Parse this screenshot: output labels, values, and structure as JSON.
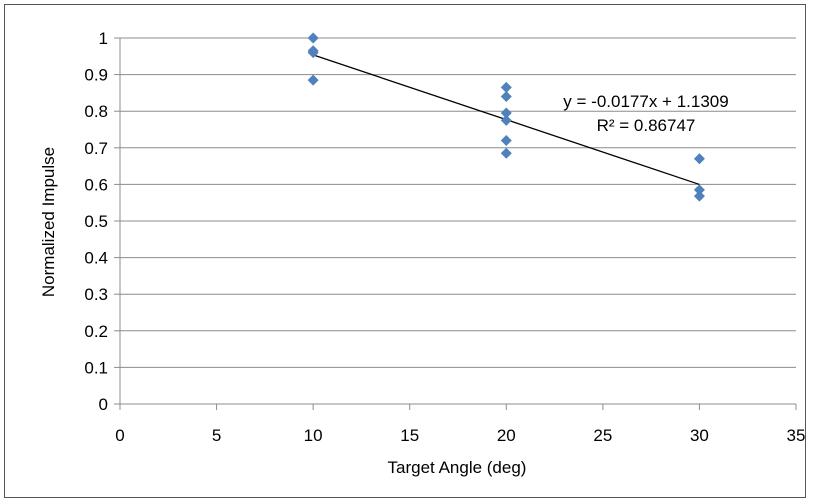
{
  "chart_data": {
    "type": "scatter",
    "title": "",
    "xlabel": "Target Angle (deg)",
    "ylabel": "Normalized Impulse",
    "xlim": [
      0,
      35
    ],
    "ylim": [
      0,
      1
    ],
    "x_ticks": [
      "0",
      "5",
      "10",
      "15",
      "20",
      "25",
      "30",
      "35"
    ],
    "y_ticks": [
      "0",
      "0.1",
      "0.2",
      "0.3",
      "0.4",
      "0.5",
      "0.6",
      "0.7",
      "0.8",
      "0.9",
      "1"
    ],
    "grid": true,
    "legend": "none",
    "marker": "diamond",
    "color": "#4f81bd",
    "series": [
      {
        "points": [
          {
            "x": 10,
            "y": 1.0
          },
          {
            "x": 10,
            "y": 0.965
          },
          {
            "x": 10,
            "y": 0.96
          },
          {
            "x": 10,
            "y": 0.885
          },
          {
            "x": 20,
            "y": 0.865
          },
          {
            "x": 20,
            "y": 0.84
          },
          {
            "x": 20,
            "y": 0.795
          },
          {
            "x": 20,
            "y": 0.775
          },
          {
            "x": 20,
            "y": 0.72
          },
          {
            "x": 20,
            "y": 0.685
          },
          {
            "x": 30,
            "y": 0.67
          },
          {
            "x": 30,
            "y": 0.585
          },
          {
            "x": 30,
            "y": 0.568
          }
        ]
      }
    ],
    "trendline": {
      "slope": -0.0177,
      "intercept": 1.1309,
      "x_range": [
        10,
        30
      ],
      "equation": "y = -0.0177x + 1.1309",
      "r_squared": "R² = 0.86747"
    }
  }
}
